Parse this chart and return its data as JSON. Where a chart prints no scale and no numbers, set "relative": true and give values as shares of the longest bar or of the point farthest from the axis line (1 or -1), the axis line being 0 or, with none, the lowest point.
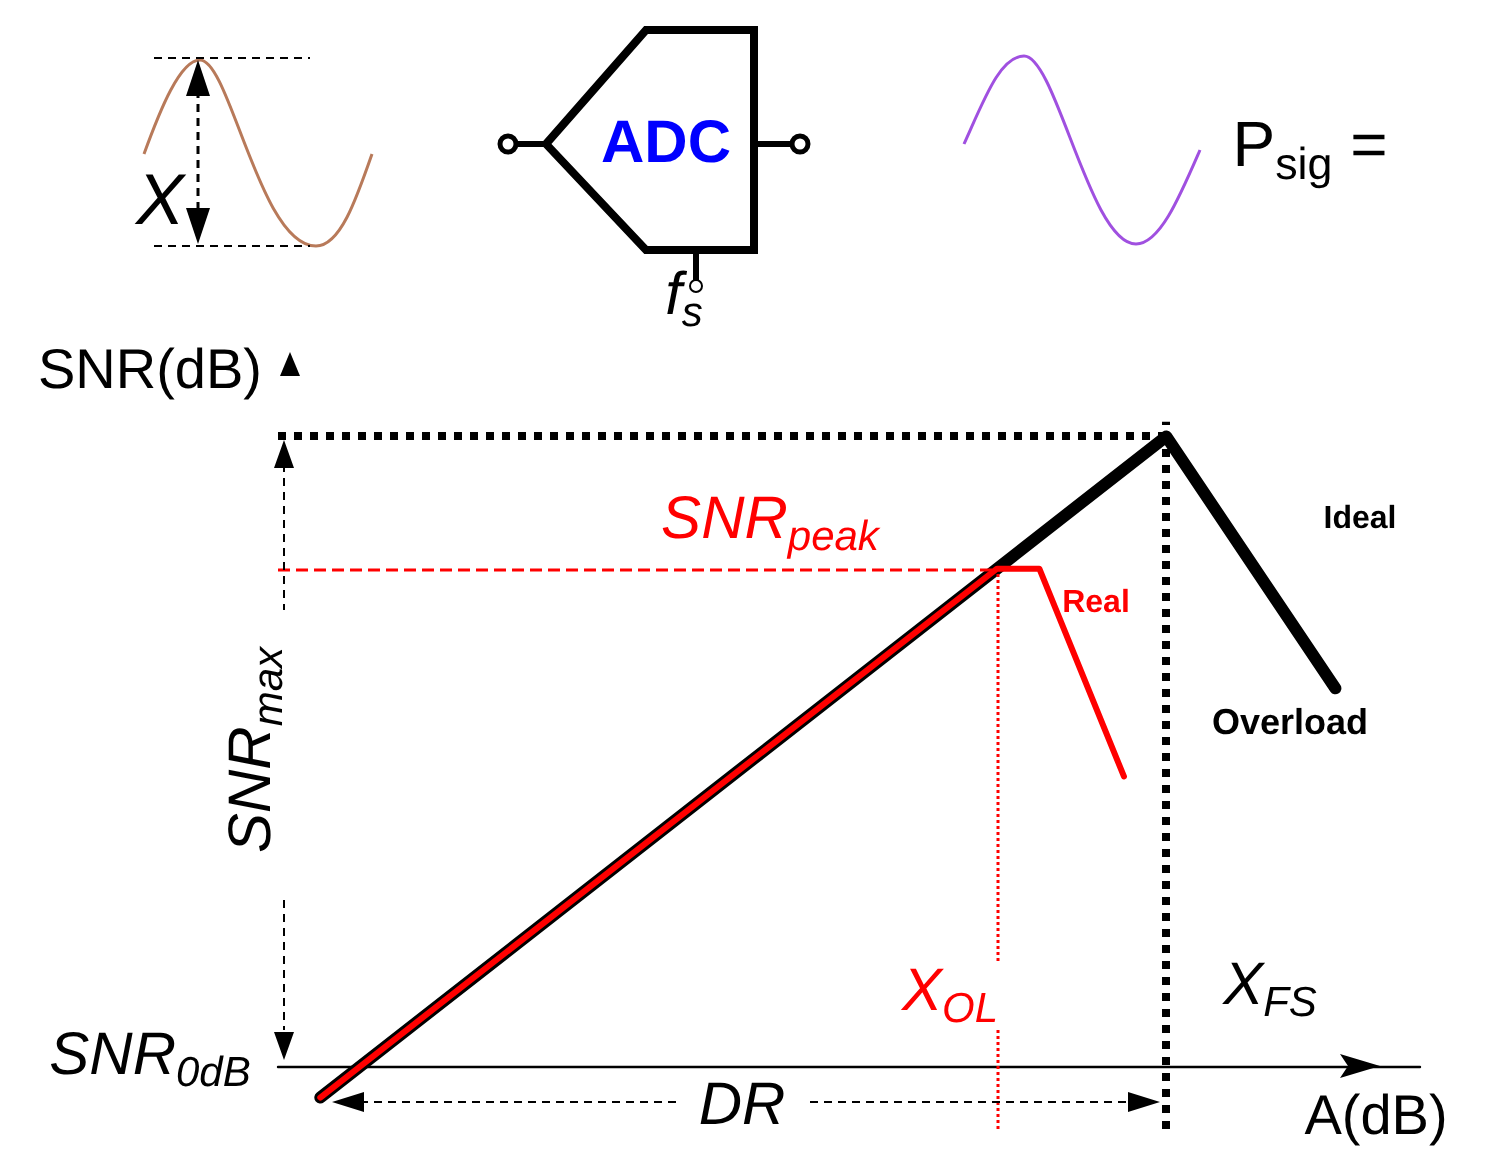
{
  "chart_data": {
    "type": "line",
    "relative": true,
    "xlabel": "A(dB)",
    "ylabel": "SNR(dB)",
    "grid": false,
    "legend": false,
    "marker": "none",
    "line_style": "solid",
    "categories": [
      null,
      null,
      null,
      null,
      null,
      null,
      null,
      null,
      null,
      null,
      null,
      null,
      null,
      null,
      null,
      null,
      null,
      null,
      null,
      null,
      null,
      null,
      null,
      null,
      null,
      null,
      null,
      null
    ],
    "series": [
      {
        "name": "Ideal",
        "color": "#000000",
        "values": [
          null,
          -0.05,
          null,
          null,
          null,
          null,
          null,
          null,
          null,
          null,
          null,
          null,
          null,
          null,
          null,
          null,
          null,
          null,
          null,
          null,
          null,
          1,
          null,
          null,
          null,
          0.6,
          null,
          null
        ]
      },
      {
        "name": "Real",
        "color": "#ff0000",
        "values": [
          null,
          -0.05,
          null,
          null,
          null,
          null,
          null,
          null,
          null,
          null,
          null,
          null,
          null,
          null,
          null,
          null,
          null,
          0.79,
          0.79,
          null,
          0.46,
          null,
          null,
          null,
          null,
          null,
          null,
          null
        ]
      }
    ],
    "ref_lines": [
      {
        "axis": "y",
        "value": 1,
        "color": "#000000",
        "line_style": "dotted"
      },
      {
        "axis": "y",
        "value": 0.79,
        "label": "SNR$_{peak}$",
        "color": "#ff0000",
        "line_style": "dashed"
      },
      {
        "axis": "x",
        "label": "X$_{OL}$",
        "color": "#ff0000",
        "line_style": "dotted"
      },
      {
        "axis": "x",
        "label": "X$_{FS}$",
        "color": "#000000",
        "line_style": "dotted"
      }
    ],
    "annotations": [
      "X",
      "ADC",
      "f$_{s}$",
      "P$_{sig}$ =",
      "SNR$_{0dB}$",
      "DR",
      "Overload",
      "SNR$_{max}$"
    ]
  }
}
